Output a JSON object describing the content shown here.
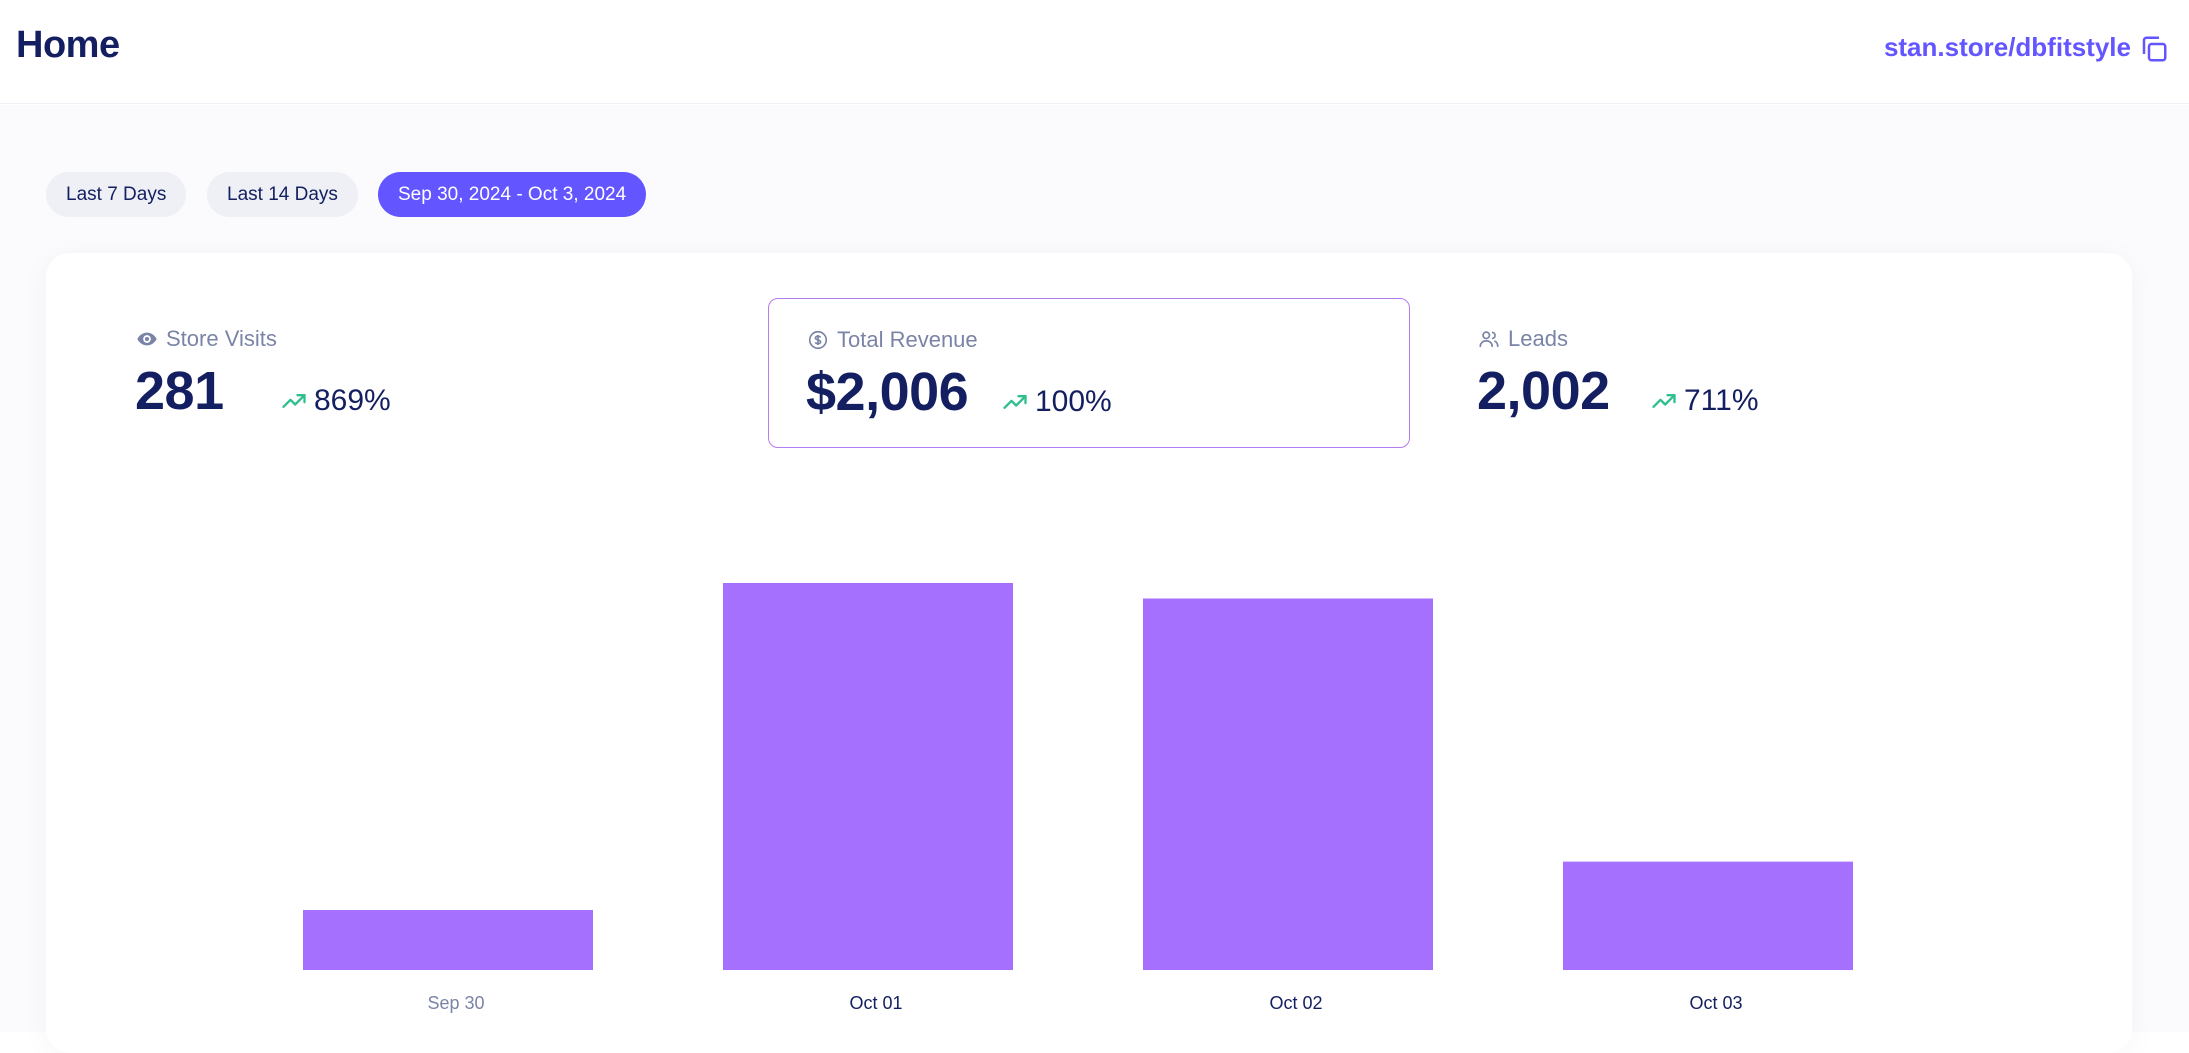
{
  "header": {
    "title": "Home",
    "store_link": "stan.store/dbfitstyle",
    "copy_icon": "copy-icon"
  },
  "date_ranges": [
    {
      "label": "Last 7 Days",
      "active": false
    },
    {
      "label": "Last 14 Days",
      "active": false
    },
    {
      "label": "Sep 30, 2024 - Oct 3, 2024",
      "active": true
    }
  ],
  "stats": [
    {
      "label": "Store Visits",
      "icon": "eye-icon",
      "value": "281",
      "change": "869%",
      "selected": false
    },
    {
      "label": "Total Revenue",
      "icon": "dollar-circle-icon",
      "value": "$2,006",
      "change": "100%",
      "selected": true
    },
    {
      "label": "Leads",
      "icon": "users-icon",
      "value": "2,002",
      "change": "711%",
      "selected": false
    }
  ],
  "colors": {
    "accent": "#6355ff",
    "bar": "#a670fe",
    "trend_up": "#2fbf8f",
    "text_dark": "#131f60",
    "text_muted": "#7a84a6"
  },
  "chart_data": {
    "type": "bar",
    "categories": [
      "Sep 30",
      "Oct 01",
      "Oct 02",
      "Oct 03"
    ],
    "values": [
      0.155,
      1.0,
      0.96,
      0.28
    ],
    "ylim": [
      0,
      1
    ],
    "grid": false,
    "title": "",
    "xlabel": "",
    "ylabel": ""
  }
}
